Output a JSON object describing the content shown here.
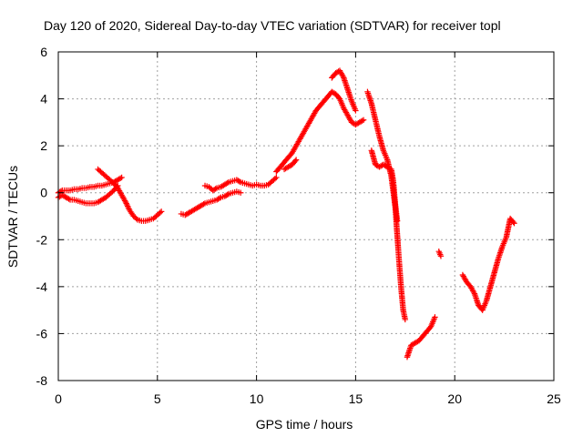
{
  "chart_data": {
    "type": "scatter",
    "title": "Day 120 of 2020, Sidereal Day-to-day VTEC variation (SDTVAR) for receiver topl",
    "xlabel": "GPS time / hours",
    "ylabel": "SDTVAR / TECUs",
    "xlim": [
      0,
      25
    ],
    "ylim": [
      -8,
      6
    ],
    "xticks": [
      "0",
      "5",
      "10",
      "15",
      "20",
      "25"
    ],
    "yticks": [
      "-8",
      "-6",
      "-4",
      "-2",
      "0",
      "2",
      "4",
      "6"
    ],
    "grid": true,
    "marker": "plus",
    "color": "#ff0000",
    "series": [
      {
        "x": [
          0.0,
          0.2,
          0.4,
          0.6,
          0.8,
          1.0,
          1.2,
          1.4,
          1.6,
          1.8,
          2.0,
          2.2,
          2.4,
          2.6,
          2.8,
          3.0,
          3.2
        ],
        "y": [
          0.0,
          0.1,
          0.1,
          0.1,
          0.15,
          0.15,
          0.2,
          0.2,
          0.25,
          0.25,
          0.3,
          0.3,
          0.35,
          0.4,
          0.45,
          0.55,
          0.65
        ]
      },
      {
        "x": [
          0.0,
          0.2,
          0.4,
          0.6,
          0.8,
          1.0,
          1.2,
          1.4,
          1.6,
          1.8,
          2.0,
          2.2,
          2.4,
          2.6,
          2.8,
          3.0
        ],
        "y": [
          -0.2,
          -0.1,
          -0.2,
          -0.3,
          -0.3,
          -0.35,
          -0.4,
          -0.45,
          -0.45,
          -0.45,
          -0.4,
          -0.3,
          -0.2,
          -0.05,
          0.1,
          0.3
        ]
      },
      {
        "x": [
          2.0,
          2.2,
          2.4,
          2.6,
          2.8,
          3.0,
          3.2,
          3.4,
          3.6,
          3.8,
          4.0,
          4.2,
          4.4,
          4.6,
          4.8,
          5.0,
          5.2
        ],
        "y": [
          1.0,
          0.85,
          0.7,
          0.55,
          0.4,
          0.2,
          -0.1,
          -0.4,
          -0.75,
          -1.0,
          -1.15,
          -1.2,
          -1.2,
          -1.15,
          -1.1,
          -0.95,
          -0.8
        ]
      },
      {
        "x": [
          6.2,
          6.4,
          6.6,
          6.8,
          7.0,
          7.2,
          7.4,
          7.6,
          7.8,
          8.0,
          8.2,
          8.4,
          8.6,
          8.8,
          9.0,
          9.2
        ],
        "y": [
          -0.9,
          -0.95,
          -0.85,
          -0.75,
          -0.65,
          -0.55,
          -0.45,
          -0.4,
          -0.35,
          -0.3,
          -0.2,
          -0.15,
          -0.05,
          0.0,
          0.05,
          0.0
        ]
      },
      {
        "x": [
          7.4,
          7.6,
          7.8,
          8.0,
          8.2,
          8.4,
          8.6,
          8.8,
          9.0,
          9.2,
          9.4,
          9.6,
          9.8,
          10.0,
          10.2,
          10.4,
          10.6,
          10.8,
          11.0
        ],
        "y": [
          0.3,
          0.25,
          0.1,
          0.2,
          0.25,
          0.35,
          0.45,
          0.5,
          0.55,
          0.45,
          0.4,
          0.35,
          0.3,
          0.35,
          0.3,
          0.3,
          0.35,
          0.5,
          0.65
        ]
      },
      {
        "x": [
          11.0,
          11.2,
          11.4,
          11.6,
          11.8,
          12.0,
          12.2,
          12.4,
          12.6,
          12.8,
          13.0,
          13.2,
          13.4,
          13.6,
          13.8,
          14.0,
          14.2,
          14.4,
          14.6,
          14.8,
          15.0,
          15.2,
          15.4
        ],
        "y": [
          0.9,
          1.1,
          1.3,
          1.5,
          1.7,
          2.0,
          2.3,
          2.6,
          2.9,
          3.2,
          3.5,
          3.7,
          3.9,
          4.1,
          4.3,
          4.2,
          4.0,
          3.6,
          3.3,
          3.0,
          2.9,
          3.0,
          3.1
        ]
      },
      {
        "x": [
          11.4,
          11.6,
          11.8,
          12.0,
          13.8,
          14.0,
          14.2,
          14.4,
          14.6,
          14.8,
          15.0
        ],
        "y": [
          1.0,
          1.1,
          1.2,
          1.4,
          4.9,
          5.1,
          5.2,
          4.9,
          4.4,
          3.9,
          3.5
        ]
      },
      {
        "x": [
          15.6,
          15.8,
          16.0,
          16.2,
          16.4,
          16.6,
          16.8,
          17.0,
          17.1,
          17.2,
          17.3,
          17.4,
          17.5
        ],
        "y": [
          4.3,
          3.8,
          3.1,
          2.4,
          1.8,
          1.4,
          0.7,
          -0.6,
          -1.8,
          -3.0,
          -4.1,
          -5.0,
          -5.4
        ]
      },
      {
        "x": [
          15.8,
          16.0,
          16.2,
          16.4,
          16.6,
          16.8,
          16.9,
          17.0,
          17.1
        ],
        "y": [
          1.8,
          1.2,
          1.1,
          1.2,
          1.1,
          1.0,
          0.5,
          -0.5,
          -1.2
        ]
      },
      {
        "x": [
          17.6,
          17.8,
          18.0,
          18.2,
          18.4,
          18.6,
          18.8,
          19.0,
          19.2,
          19.3
        ],
        "y": [
          -7.0,
          -6.5,
          -6.4,
          -6.3,
          -6.1,
          -5.9,
          -5.7,
          -5.3,
          -2.5,
          -2.7
        ]
      },
      {
        "x": [
          20.4,
          20.6,
          20.8,
          21.0,
          21.2,
          21.4,
          21.6,
          21.8,
          22.0,
          22.2,
          22.4,
          22.6,
          22.8,
          23.0
        ],
        "y": [
          -3.5,
          -3.8,
          -4.0,
          -4.3,
          -4.8,
          -5.0,
          -4.6,
          -4.0,
          -3.4,
          -2.8,
          -2.3,
          -1.9,
          -1.1,
          -1.3
        ]
      }
    ]
  }
}
